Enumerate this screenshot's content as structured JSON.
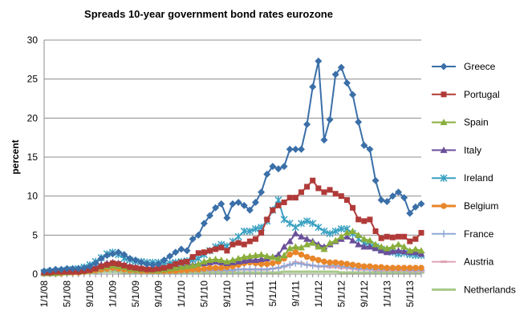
{
  "chart_data": {
    "type": "line",
    "title": "Spreads 10-year government bond rates eurozone",
    "xlabel": "",
    "ylabel": "percent",
    "ylim": [
      0,
      30
    ],
    "yticks": [
      0,
      5,
      10,
      15,
      20,
      25,
      30
    ],
    "x_tick_labels": [
      "1/1/08",
      "5/1/08",
      "9/1/08",
      "1/1/09",
      "5/1/09",
      "9/1/09",
      "1/1/10",
      "5/1/10",
      "9/1/10",
      "1/1/11",
      "5/1/11",
      "9/1/11",
      "1/1/12",
      "5/1/12",
      "9/1/12",
      "1/1/13",
      "5/1/13"
    ],
    "x_tick_months": [
      0,
      4,
      8,
      12,
      16,
      20,
      24,
      28,
      32,
      36,
      40,
      44,
      48,
      52,
      56,
      60,
      64
    ],
    "grid": "horizontal",
    "legend_position": "right",
    "x_months": [
      0,
      1,
      2,
      3,
      4,
      5,
      6,
      7,
      8,
      9,
      10,
      11,
      12,
      13,
      14,
      15,
      16,
      17,
      18,
      19,
      20,
      21,
      22,
      23,
      24,
      25,
      26,
      27,
      28,
      29,
      30,
      31,
      32,
      33,
      34,
      35,
      36,
      37,
      38,
      39,
      40,
      41,
      42,
      43,
      44,
      45,
      46,
      47,
      48,
      49,
      50,
      51,
      52,
      53,
      54,
      55,
      56,
      57,
      58,
      59,
      60,
      61,
      62,
      63,
      64,
      65,
      66
    ],
    "series": [
      {
        "name": "Greece",
        "color": "#3a6fa8",
        "marker": "diamond",
        "values": [
          0.4,
          0.5,
          0.6,
          0.6,
          0.7,
          0.7,
          0.7,
          0.8,
          1.0,
          1.4,
          2.0,
          2.4,
          2.6,
          2.8,
          2.5,
          2.0,
          1.8,
          1.5,
          1.3,
          1.2,
          1.3,
          1.8,
          2.3,
          2.8,
          3.2,
          3.0,
          4.5,
          5.0,
          6.5,
          7.5,
          8.5,
          9.0,
          7.2,
          9.0,
          9.2,
          8.8,
          8.2,
          9.2,
          10.5,
          12.8,
          13.8,
          13.5,
          13.8,
          16.0,
          16.0,
          16.0,
          19.2,
          24.0,
          27.3,
          17.2,
          19.8,
          25.6,
          26.5,
          24.5,
          23.0,
          19.5,
          16.5,
          16.0,
          12.0,
          9.5,
          9.3,
          10.0,
          10.5,
          9.8,
          7.8,
          8.6,
          9.0
        ]
      },
      {
        "name": "Portugal",
        "color": "#b03a38",
        "marker": "square",
        "values": [
          0.2,
          0.2,
          0.3,
          0.3,
          0.3,
          0.3,
          0.3,
          0.4,
          0.5,
          0.7,
          1.0,
          1.2,
          1.4,
          1.3,
          1.1,
          0.9,
          0.8,
          0.7,
          0.6,
          0.6,
          0.7,
          0.8,
          1.0,
          1.3,
          1.5,
          1.6,
          2.2,
          2.7,
          2.8,
          3.0,
          3.2,
          3.4,
          3.0,
          3.8,
          4.0,
          3.8,
          4.2,
          4.5,
          5.3,
          7.0,
          8.2,
          8.8,
          9.2,
          9.8,
          9.8,
          10.5,
          11.2,
          12.0,
          11.0,
          10.5,
          10.8,
          10.3,
          10.0,
          9.5,
          8.5,
          7.0,
          6.8,
          7.0,
          5.5,
          4.6,
          4.8,
          4.7,
          4.8,
          4.8,
          4.2,
          4.5,
          5.3
        ]
      },
      {
        "name": "Spain",
        "color": "#8aae3c",
        "marker": "triangle",
        "values": [
          0.1,
          0.1,
          0.1,
          0.2,
          0.2,
          0.3,
          0.3,
          0.4,
          0.5,
          0.7,
          0.9,
          1.0,
          1.1,
          1.0,
          0.9,
          0.7,
          0.6,
          0.6,
          0.6,
          0.5,
          0.5,
          0.6,
          0.7,
          0.8,
          0.9,
          1.0,
          1.1,
          1.3,
          1.6,
          1.8,
          1.9,
          1.8,
          1.6,
          1.8,
          2.0,
          2.2,
          2.3,
          2.4,
          2.5,
          2.3,
          2.2,
          2.0,
          2.4,
          3.3,
          3.5,
          3.4,
          3.8,
          4.0,
          3.5,
          3.2,
          4.0,
          4.3,
          4.8,
          5.3,
          5.5,
          5.0,
          4.5,
          4.3,
          3.8,
          3.5,
          3.3,
          3.5,
          3.8,
          3.5,
          3.0,
          3.2,
          3.0
        ]
      },
      {
        "name": "Italy",
        "color": "#6a4f9a",
        "marker": "triangle",
        "values": [
          0.2,
          0.2,
          0.3,
          0.3,
          0.4,
          0.5,
          0.5,
          0.6,
          0.7,
          0.9,
          1.2,
          1.4,
          1.5,
          1.4,
          1.2,
          1.0,
          0.9,
          0.8,
          0.8,
          0.7,
          0.7,
          0.7,
          0.8,
          0.9,
          1.0,
          1.1,
          1.2,
          1.3,
          1.4,
          1.5,
          1.6,
          1.5,
          1.4,
          1.5,
          1.6,
          1.7,
          1.8,
          1.8,
          1.9,
          2.0,
          2.2,
          2.5,
          3.5,
          4.2,
          5.2,
          4.8,
          4.5,
          4.2,
          3.8,
          3.5,
          3.8,
          4.2,
          4.5,
          4.8,
          4.3,
          3.8,
          3.5,
          3.5,
          3.3,
          3.0,
          2.8,
          2.9,
          3.0,
          2.9,
          2.8,
          2.8,
          2.6
        ]
      },
      {
        "name": "Ireland",
        "color": "#3aa1c2",
        "marker": "star",
        "values": [
          0.2,
          0.3,
          0.3,
          0.4,
          0.5,
          0.6,
          0.7,
          0.9,
          1.2,
          1.6,
          2.1,
          2.6,
          2.8,
          2.5,
          2.0,
          1.8,
          1.6,
          1.6,
          1.5,
          1.5,
          1.5,
          1.4,
          1.4,
          1.5,
          1.6,
          1.7,
          1.8,
          2.0,
          2.5,
          3.0,
          3.5,
          3.8,
          3.6,
          4.2,
          4.8,
          5.5,
          5.5,
          5.8,
          6.0,
          6.8,
          8.2,
          9.5,
          7.0,
          6.5,
          6.0,
          6.5,
          6.8,
          6.5,
          6.0,
          5.5,
          5.2,
          5.5,
          5.8,
          5.8,
          5.2,
          4.5,
          4.0,
          3.8,
          3.5,
          3.2,
          3.0,
          2.8,
          2.6,
          2.7,
          2.5,
          2.4,
          2.4
        ]
      },
      {
        "name": "Belgium",
        "color": "#e8862a",
        "marker": "circle",
        "values": [
          0.1,
          0.1,
          0.1,
          0.1,
          0.2,
          0.2,
          0.2,
          0.3,
          0.4,
          0.5,
          0.6,
          0.7,
          0.8,
          0.7,
          0.6,
          0.5,
          0.5,
          0.4,
          0.4,
          0.4,
          0.4,
          0.4,
          0.4,
          0.4,
          0.5,
          0.5,
          0.6,
          0.6,
          0.7,
          0.8,
          0.8,
          0.8,
          0.9,
          1.0,
          1.2,
          1.4,
          1.5,
          1.4,
          1.3,
          1.3,
          1.4,
          1.6,
          2.0,
          2.5,
          2.8,
          2.5,
          2.2,
          2.0,
          1.8,
          1.6,
          1.5,
          1.5,
          1.4,
          1.3,
          1.2,
          1.1,
          1.0,
          1.0,
          0.9,
          0.9,
          0.8,
          0.8,
          0.8,
          0.8,
          0.8,
          0.8,
          0.8
        ]
      },
      {
        "name": "France",
        "color": "#8fa8d6",
        "marker": "plus",
        "values": [
          0.1,
          0.1,
          0.1,
          0.1,
          0.1,
          0.2,
          0.2,
          0.2,
          0.3,
          0.4,
          0.5,
          0.6,
          0.6,
          0.5,
          0.5,
          0.4,
          0.4,
          0.3,
          0.3,
          0.3,
          0.3,
          0.3,
          0.3,
          0.3,
          0.4,
          0.4,
          0.4,
          0.4,
          0.5,
          0.5,
          0.5,
          0.5,
          0.5,
          0.5,
          0.6,
          0.6,
          0.6,
          0.6,
          0.6,
          0.6,
          0.7,
          0.8,
          1.0,
          1.2,
          1.4,
          1.3,
          1.2,
          1.1,
          1.0,
          1.0,
          1.1,
          1.1,
          1.0,
          0.9,
          0.8,
          0.7,
          0.7,
          0.6,
          0.6,
          0.6,
          0.6,
          0.6,
          0.6,
          0.6,
          0.5,
          0.5,
          0.5
        ]
      },
      {
        "name": "Austria",
        "color": "#dfa3b4",
        "marker": "dash",
        "values": [
          0.1,
          0.1,
          0.1,
          0.1,
          0.2,
          0.2,
          0.2,
          0.3,
          0.4,
          0.6,
          0.8,
          1.0,
          1.2,
          1.1,
          0.9,
          0.7,
          0.6,
          0.5,
          0.5,
          0.4,
          0.4,
          0.4,
          0.4,
          0.4,
          0.4,
          0.4,
          0.5,
          0.5,
          0.5,
          0.5,
          0.5,
          0.5,
          0.5,
          0.5,
          0.6,
          0.6,
          0.6,
          0.6,
          0.6,
          0.6,
          0.7,
          0.8,
          1.0,
          1.2,
          1.5,
          1.4,
          1.2,
          1.1,
          1.0,
          1.0,
          0.9,
          0.9,
          0.8,
          0.8,
          0.7,
          0.6,
          0.6,
          0.6,
          0.5,
          0.5,
          0.5,
          0.5,
          0.5,
          0.5,
          0.4,
          0.4,
          0.4
        ]
      },
      {
        "name": "Netherlands",
        "color": "#a8c98a",
        "marker": "dash",
        "values": [
          0.1,
          0.1,
          0.1,
          0.1,
          0.1,
          0.1,
          0.1,
          0.1,
          0.1,
          0.2,
          0.3,
          0.3,
          0.3,
          0.3,
          0.2,
          0.2,
          0.2,
          0.2,
          0.2,
          0.2,
          0.2,
          0.2,
          0.2,
          0.2,
          0.2,
          0.2,
          0.2,
          0.2,
          0.2,
          0.2,
          0.2,
          0.2,
          0.2,
          0.2,
          0.2,
          0.2,
          0.2,
          0.2,
          0.2,
          0.2,
          0.2,
          0.2,
          0.3,
          0.3,
          0.3,
          0.3,
          0.3,
          0.3,
          0.3,
          0.3,
          0.3,
          0.3,
          0.2,
          0.2,
          0.2,
          0.2,
          0.2,
          0.2,
          0.2,
          0.2,
          0.2,
          0.2,
          0.2,
          0.2,
          0.2,
          0.2,
          0.2
        ]
      }
    ]
  }
}
